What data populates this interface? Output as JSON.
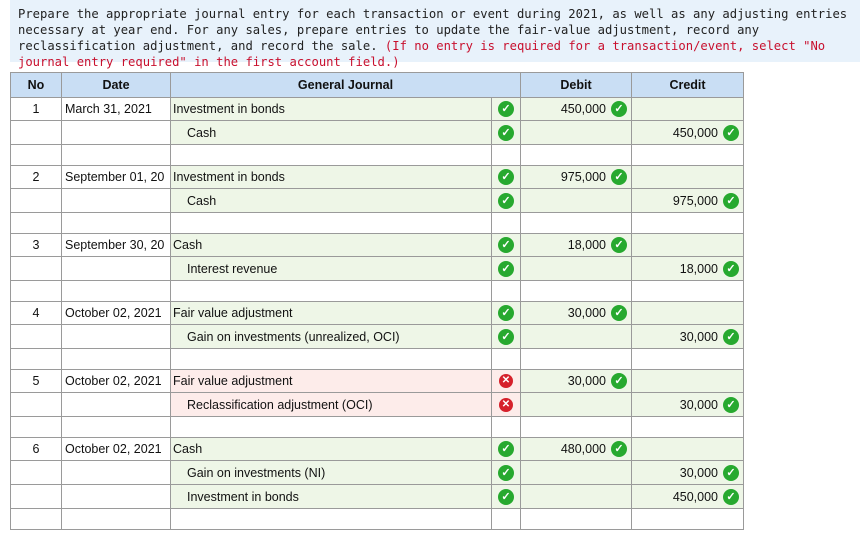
{
  "instructions": {
    "text": "Prepare the appropriate journal entry for each transaction or event during 2021, as well as any adjusting entries necessary at year end. For any sales, prepare entries to update the fair-value adjustment, record any reclassification adjustment, and record the sale.",
    "note": "(If no entry is required for a transaction/event, select \"No journal entry required\" in the first account field.)"
  },
  "table": {
    "headers": {
      "no": "No",
      "date": "Date",
      "journal": "General Journal",
      "debit": "Debit",
      "credit": "Credit"
    },
    "entries": [
      {
        "no": "1",
        "date": "March 31, 2021",
        "lines": [
          {
            "account": "Investment in bonds",
            "debit": "450,000",
            "credit": "",
            "status": "correct"
          },
          {
            "account": "Cash",
            "debit": "",
            "credit": "450,000",
            "status": "correct"
          }
        ]
      },
      {
        "no": "2",
        "date": "September 01, 20",
        "lines": [
          {
            "account": "Investment in bonds",
            "debit": "975,000",
            "credit": "",
            "status": "correct"
          },
          {
            "account": "Cash",
            "debit": "",
            "credit": "975,000",
            "status": "correct"
          }
        ]
      },
      {
        "no": "3",
        "date": "September 30, 20",
        "lines": [
          {
            "account": "Cash",
            "debit": "18,000",
            "credit": "",
            "status": "correct"
          },
          {
            "account": "Interest revenue",
            "debit": "",
            "credit": "18,000",
            "status": "correct"
          }
        ]
      },
      {
        "no": "4",
        "date": "October 02, 2021",
        "lines": [
          {
            "account": "Fair value adjustment",
            "debit": "30,000",
            "credit": "",
            "status": "correct"
          },
          {
            "account": "Gain on investments (unrealized, OCI)",
            "debit": "",
            "credit": "30,000",
            "status": "correct"
          }
        ]
      },
      {
        "no": "5",
        "date": "October 02, 2021",
        "lines": [
          {
            "account": "Fair value adjustment",
            "debit": "30,000",
            "credit": "",
            "status": "incorrect"
          },
          {
            "account": "Reclassification adjustment (OCI)",
            "debit": "",
            "credit": "30,000",
            "status": "incorrect"
          }
        ]
      },
      {
        "no": "6",
        "date": "October 02, 2021",
        "lines": [
          {
            "account": "Cash",
            "debit": "480,000",
            "credit": "",
            "status": "correct"
          },
          {
            "account": "Gain on investments (NI)",
            "debit": "",
            "credit": "30,000",
            "status": "correct"
          },
          {
            "account": "Investment in bonds",
            "debit": "",
            "credit": "450,000",
            "status": "correct"
          }
        ]
      }
    ]
  }
}
